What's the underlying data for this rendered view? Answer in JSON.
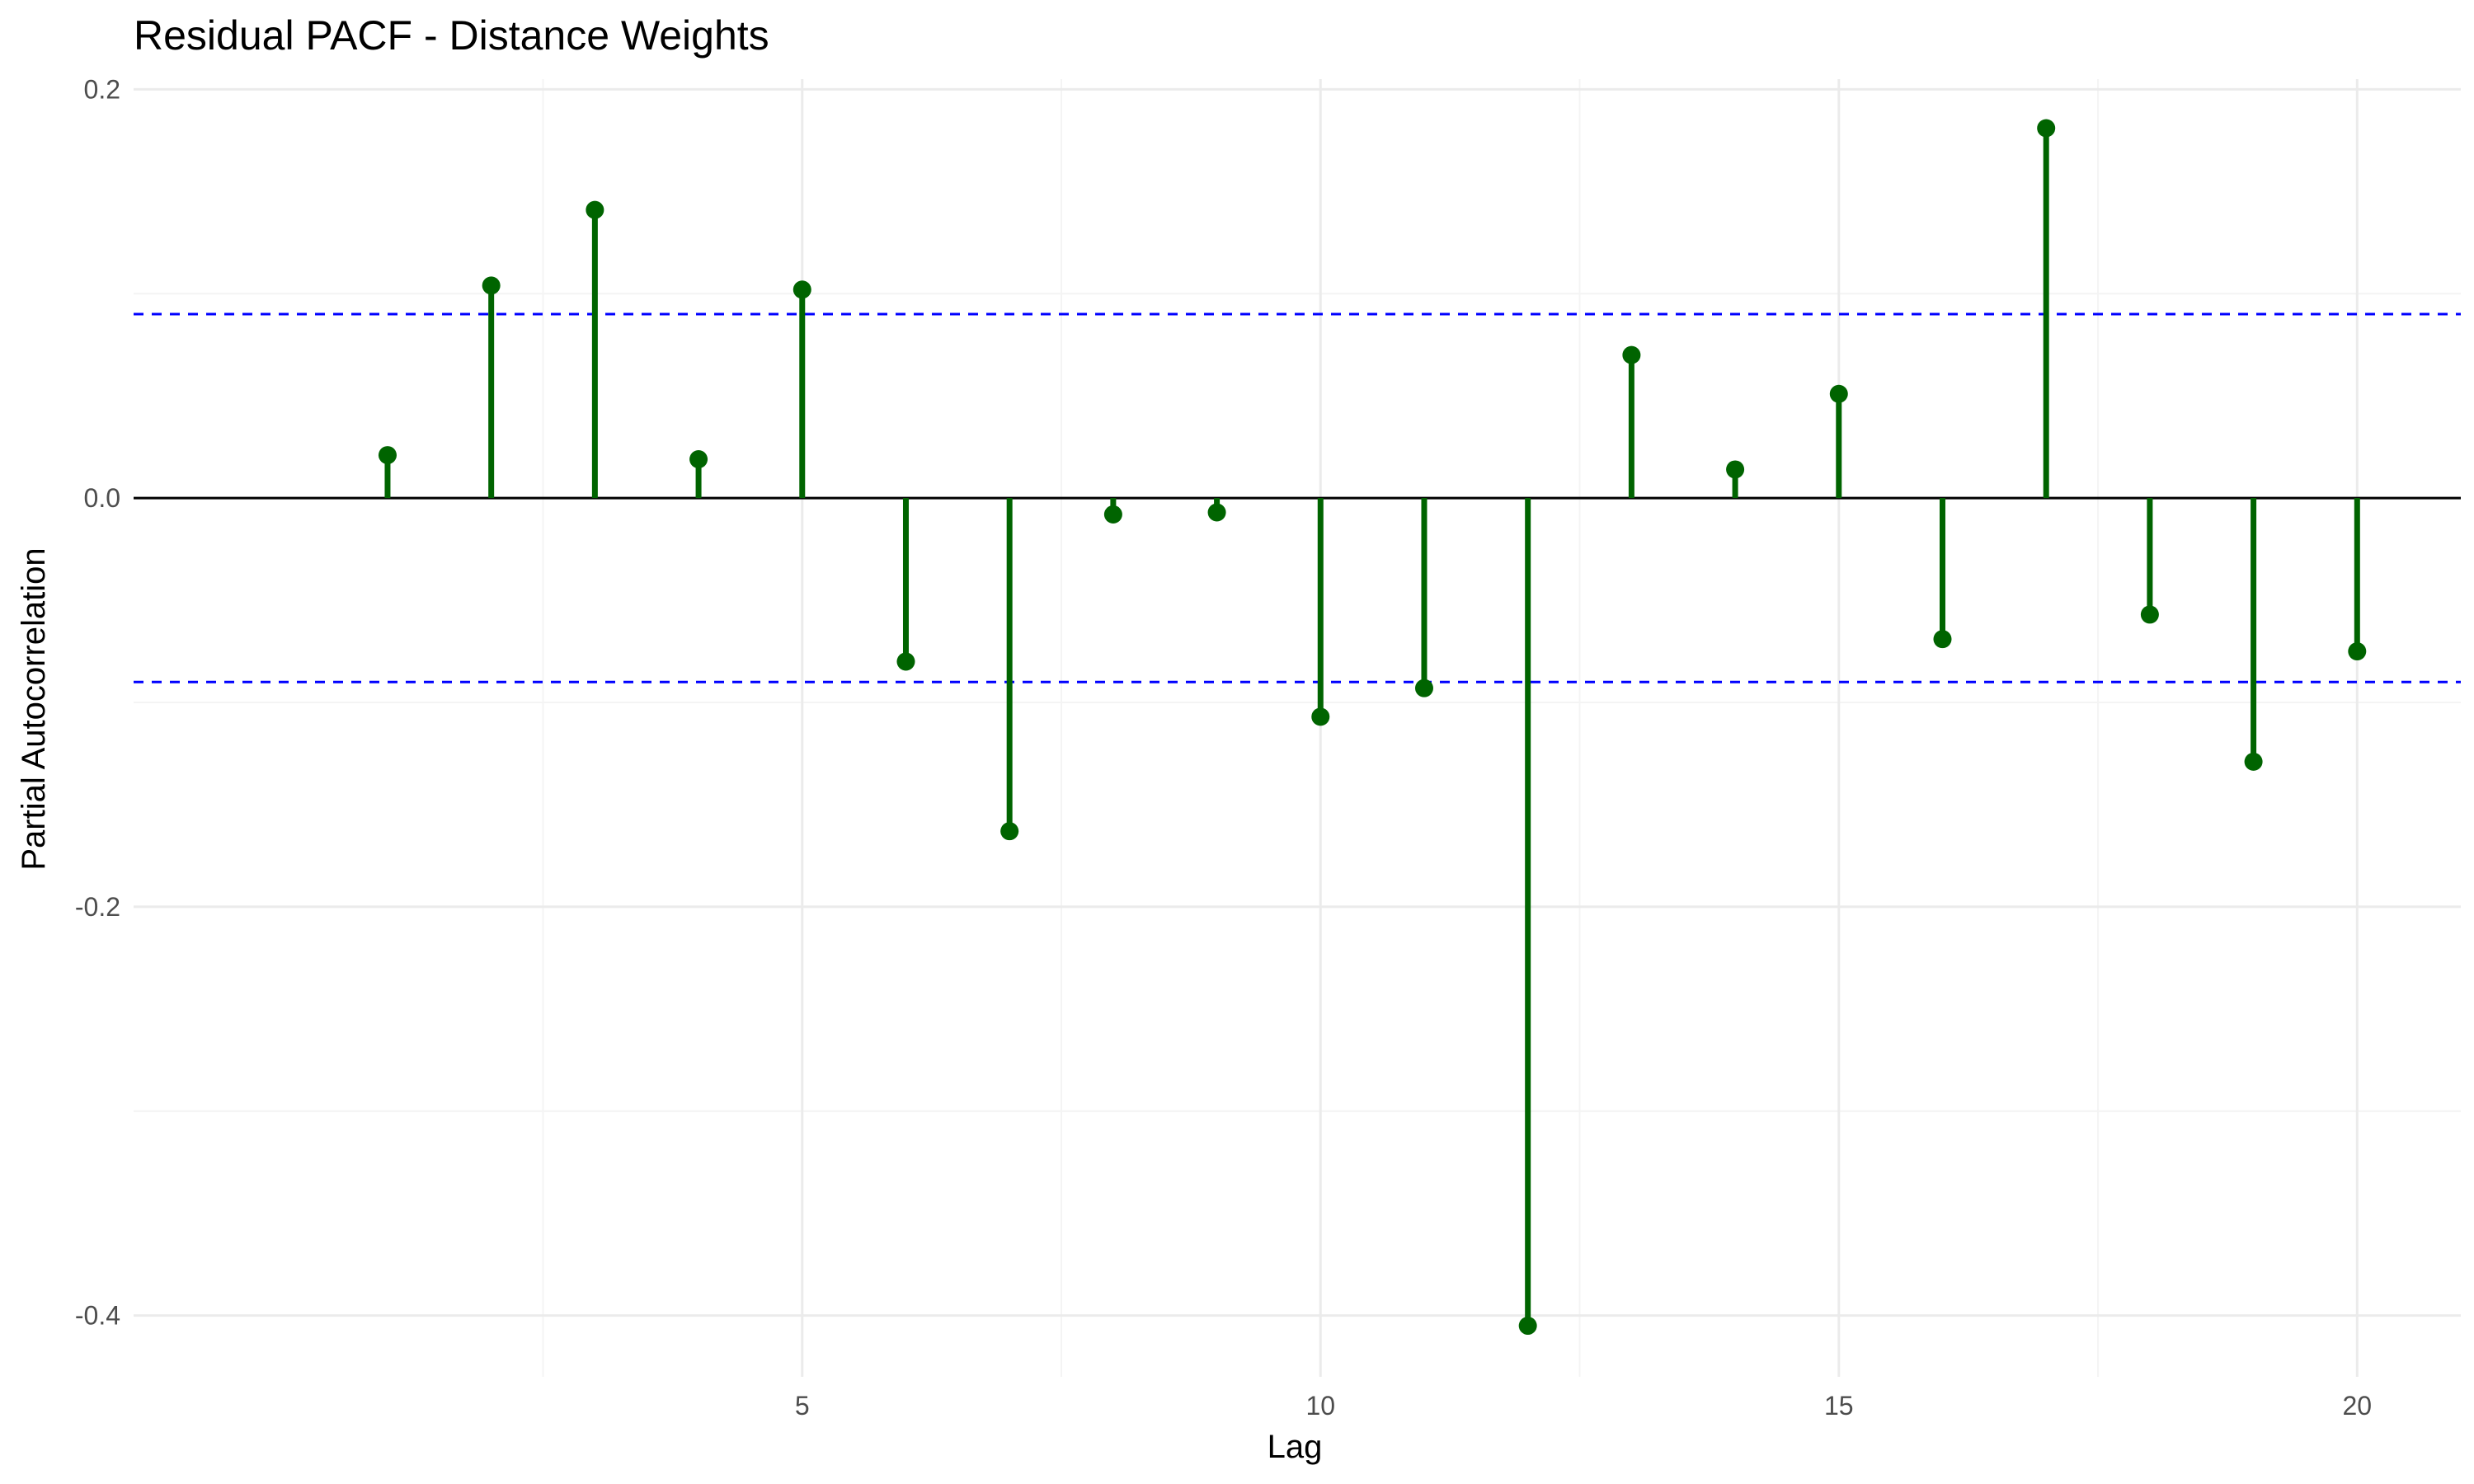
{
  "chart_data": {
    "type": "lollipop",
    "title": "Residual PACF - Distance Weights",
    "xlabel": "Lag",
    "ylabel": "Partial Autocorrelation",
    "x": [
      1,
      2,
      3,
      4,
      5,
      6,
      7,
      8,
      9,
      10,
      11,
      12,
      13,
      14,
      15,
      16,
      17,
      18,
      19,
      20
    ],
    "values": [
      0.021,
      0.104,
      0.141,
      0.019,
      0.102,
      -0.08,
      -0.163,
      -0.008,
      -0.007,
      -0.107,
      -0.093,
      -0.405,
      0.07,
      0.014,
      0.051,
      -0.069,
      0.181,
      -0.057,
      -0.129,
      -0.075
    ],
    "xlim": [
      -1.45,
      21.0
    ],
    "ylim": [
      -0.43,
      0.205
    ],
    "x_ticks": [
      5,
      10,
      15,
      20
    ],
    "x_tick_labels": [
      "5",
      "10",
      "15",
      "20"
    ],
    "y_ticks": [
      -0.4,
      -0.2,
      0.0,
      0.2
    ],
    "y_tick_labels": [
      "-0.4",
      "-0.2",
      "0.0",
      "0.2"
    ],
    "confidence_bounds": [
      0.09,
      -0.09
    ],
    "zero_line": 0,
    "grid": true,
    "colors": {
      "stem": "#006400",
      "point": "#006400",
      "confidence": "#0000ff",
      "zero_line": "#000000",
      "grid_major": "#ebebeb",
      "grid_minor": "#f4f4f4",
      "tick_text": "#4d4d4d"
    }
  }
}
